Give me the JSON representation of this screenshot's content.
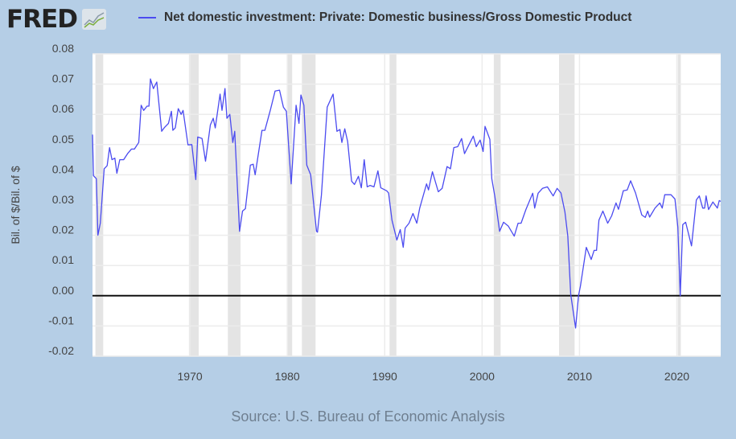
{
  "logo": {
    "text": "FRED"
  },
  "chart_data": {
    "type": "line",
    "title": "Net domestic investment: Private: Domestic business/Gross Domestic Product",
    "xlabel": "",
    "ylabel": "Bil. of $/Bil. of $",
    "source": "Source: U.S. Bureau of Economic Analysis",
    "xlim": [
      1960,
      2024.5
    ],
    "ylim": [
      -0.02,
      0.08
    ],
    "yticks": [
      "0.08",
      "0.07",
      "0.06",
      "0.05",
      "0.04",
      "0.03",
      "0.02",
      "0.01",
      "0.00",
      "-0.01",
      "-0.02"
    ],
    "ytick_values": [
      0.08,
      0.07,
      0.06,
      0.05,
      0.04,
      0.03,
      0.02,
      0.01,
      0,
      -0.01,
      -0.02
    ],
    "xticks": [
      "1970",
      "1980",
      "1990",
      "2000",
      "2010",
      "2020"
    ],
    "xtick_values": [
      1970,
      1980,
      1990,
      2000,
      2010,
      2020
    ],
    "grid": true,
    "legend": "top",
    "colors": {
      "series": "#4b4bf0",
      "background": "#b5cee6",
      "recession": "#e4e4e4",
      "zero_line": "#111111"
    },
    "recessions": [
      [
        1960.3,
        1961.1
      ],
      [
        1969.9,
        1970.9
      ],
      [
        1973.9,
        1975.2
      ],
      [
        1980.0,
        1980.5
      ],
      [
        1981.5,
        1982.9
      ],
      [
        1990.5,
        1991.2
      ],
      [
        2001.2,
        2001.9
      ],
      [
        2007.9,
        2009.5
      ],
      [
        2020.1,
        2020.4
      ]
    ],
    "series": [
      {
        "name": "Net domestic investment: Private: Domestic business/Gross Domestic Product",
        "x": [
          1960.0,
          1960.1,
          1960.4,
          1960.55,
          1960.8,
          1961.2,
          1961.5,
          1961.75,
          1962.0,
          1962.3,
          1962.5,
          1962.8,
          1963.2,
          1963.6,
          1964.0,
          1964.3,
          1964.75,
          1965.0,
          1965.25,
          1965.6,
          1965.8,
          1965.95,
          1966.25,
          1966.6,
          1967.1,
          1967.4,
          1967.8,
          1968.1,
          1968.25,
          1968.5,
          1968.8,
          1969.1,
          1969.3,
          1969.8,
          1970.2,
          1970.6,
          1970.8,
          1971.25,
          1971.6,
          1972.1,
          1972.4,
          1972.6,
          1973.1,
          1973.3,
          1973.6,
          1973.8,
          1974.1,
          1974.4,
          1974.6,
          1975.1,
          1975.4,
          1975.7,
          1976.2,
          1976.5,
          1976.7,
          1977.4,
          1977.7,
          1978.25,
          1978.75,
          1979.2,
          1979.6,
          1979.9,
          1980.4,
          1980.9,
          1981.2,
          1981.4,
          1981.7,
          1982.0,
          1982.4,
          1983.0,
          1983.1,
          1983.5,
          1984.1,
          1984.7,
          1985.1,
          1985.4,
          1985.6,
          1985.9,
          1986.2,
          1986.6,
          1986.9,
          1987.3,
          1987.6,
          1987.9,
          1988.2,
          1988.5,
          1988.9,
          1989.3,
          1989.6,
          1990.2,
          1990.4,
          1990.75,
          1991.25,
          1991.6,
          1991.9,
          1992.1,
          1992.5,
          1992.9,
          1993.3,
          1993.6,
          1994.3,
          1994.5,
          1994.9,
          1995.5,
          1995.9,
          1996.4,
          1996.75,
          1997.1,
          1997.5,
          1997.9,
          1998.2,
          1999.1,
          1999.4,
          1999.8,
          2000.1,
          2000.3,
          2000.8,
          2001.0,
          2001.3,
          2001.8,
          2002.2,
          2002.7,
          2003.3,
          2003.7,
          2004.0,
          2004.5,
          2005.2,
          2005.4,
          2005.75,
          2006.2,
          2006.7,
          2007.3,
          2007.7,
          2008.1,
          2008.5,
          2008.8,
          2009.1,
          2009.6,
          2009.9,
          2010.1,
          2010.7,
          2011.2,
          2011.5,
          2011.75,
          2012.0,
          2012.4,
          2012.9,
          2013.3,
          2013.75,
          2014.0,
          2014.5,
          2014.9,
          2015.25,
          2015.75,
          2016.4,
          2016.75,
          2017.0,
          2017.2,
          2017.75,
          2018.25,
          2018.5,
          2018.75,
          2019.4,
          2019.8,
          2020.1,
          2020.35,
          2020.6,
          2020.9,
          2021.5,
          2022.0,
          2022.3,
          2022.65,
          2022.85,
          2023.0,
          2023.25,
          2023.7,
          2024.15,
          2024.35,
          2024.5
        ],
        "y": [
          0.0533,
          0.0397,
          0.0387,
          0.02,
          0.024,
          0.042,
          0.043,
          0.049,
          0.045,
          0.0455,
          0.0405,
          0.045,
          0.045,
          0.047,
          0.0485,
          0.0485,
          0.0507,
          0.063,
          0.0613,
          0.0627,
          0.0627,
          0.0717,
          0.0685,
          0.0707,
          0.0544,
          0.0557,
          0.057,
          0.061,
          0.0547,
          0.0555,
          0.0619,
          0.06,
          0.0613,
          0.0499,
          0.05,
          0.0384,
          0.0525,
          0.052,
          0.0445,
          0.0565,
          0.0587,
          0.0555,
          0.0667,
          0.0613,
          0.0685,
          0.0587,
          0.06,
          0.0507,
          0.0544,
          0.0213,
          0.028,
          0.0288,
          0.0432,
          0.0435,
          0.04,
          0.0547,
          0.0547,
          0.0613,
          0.0677,
          0.068,
          0.0624,
          0.061,
          0.037,
          0.063,
          0.057,
          0.0664,
          0.063,
          0.0432,
          0.04,
          0.0213,
          0.021,
          0.0333,
          0.0624,
          0.0667,
          0.0544,
          0.055,
          0.0507,
          0.0552,
          0.051,
          0.0379,
          0.0368,
          0.0395,
          0.0357,
          0.045,
          0.036,
          0.0365,
          0.036,
          0.0413,
          0.0357,
          0.0347,
          0.034,
          0.025,
          0.0184,
          0.0219,
          0.016,
          0.0224,
          0.024,
          0.0272,
          0.024,
          0.029,
          0.037,
          0.035,
          0.041,
          0.0344,
          0.0355,
          0.0427,
          0.042,
          0.049,
          0.0493,
          0.052,
          0.047,
          0.0528,
          0.0493,
          0.0515,
          0.0477,
          0.056,
          0.0517,
          0.0387,
          0.033,
          0.0213,
          0.0243,
          0.023,
          0.0197,
          0.024,
          0.024,
          0.0285,
          0.0339,
          0.029,
          0.0339,
          0.0355,
          0.036,
          0.033,
          0.0355,
          0.034,
          0.0277,
          0.0197,
          0.0005,
          -0.0107,
          0.0,
          0.0032,
          0.016,
          0.012,
          0.015,
          0.015,
          0.025,
          0.028,
          0.024,
          0.0264,
          0.0307,
          0.0286,
          0.0347,
          0.035,
          0.038,
          0.034,
          0.0267,
          0.0259,
          0.028,
          0.026,
          0.029,
          0.0307,
          0.029,
          0.0334,
          0.0334,
          0.032,
          0.0227,
          0.0,
          0.0235,
          0.0243,
          0.0165,
          0.0317,
          0.033,
          0.029,
          0.029,
          0.033,
          0.0285,
          0.031,
          0.029,
          0.0315,
          0.0312
        ]
      }
    ]
  }
}
